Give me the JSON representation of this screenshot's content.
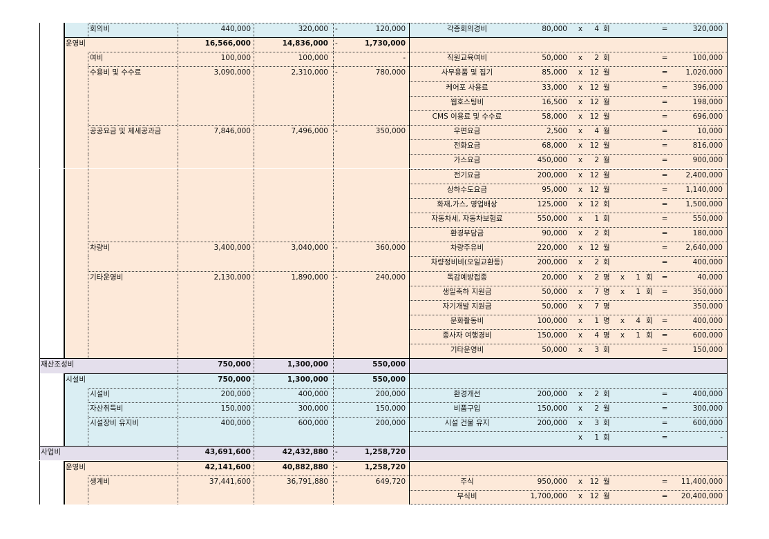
{
  "colors": {
    "blue": "#DAEEF3",
    "peach": "#FDE9D9",
    "lavender": "#E4DFEC"
  },
  "rows": [
    {
      "type": "l3",
      "group": "blue",
      "label": "회의비",
      "a": "440,000",
      "b": "320,000",
      "sign": "-",
      "c": "120,000",
      "d": {
        "item": "각종회의경비",
        "price": "80,000",
        "x1": "x",
        "n1": "4",
        "u1": "회",
        "eq": "=",
        "amt": "320,000"
      }
    },
    {
      "type": "l2",
      "group": "peach",
      "label": "운영비",
      "a": "16,566,000",
      "b": "14,836,000",
      "sign": "-",
      "c": "1,730,000"
    },
    {
      "type": "l3",
      "group": "peach",
      "label": "여비",
      "a": "100,000",
      "b": "100,000",
      "c": "-",
      "d": {
        "item": "직원교육여비",
        "price": "50,000",
        "x1": "x",
        "n1": "2",
        "u1": "회",
        "eq": "=",
        "amt": "100,000"
      }
    },
    {
      "type": "l3",
      "group": "peach",
      "label": "수용비 및 수수료",
      "a": "3,090,000",
      "b": "2,310,000",
      "sign": "-",
      "c": "780,000",
      "d": {
        "item": "사무용품 및 집기",
        "price": "85,000",
        "x1": "x",
        "n1": "12",
        "u1": "월",
        "eq": "=",
        "amt": "1,020,000"
      }
    },
    {
      "type": "cont",
      "group": "peach",
      "d": {
        "item": "케어포 사용료",
        "price": "33,000",
        "x1": "x",
        "n1": "12",
        "u1": "월",
        "eq": "=",
        "amt": "396,000"
      }
    },
    {
      "type": "cont",
      "group": "peach",
      "d": {
        "item": "웹호스팅비",
        "price": "16,500",
        "x1": "x",
        "n1": "12",
        "u1": "월",
        "eq": "=",
        "amt": "198,000"
      }
    },
    {
      "type": "cont",
      "group": "peach",
      "d": {
        "item": "CMS 이용료 및 수수료",
        "price": "58,000",
        "x1": "x",
        "n1": "12",
        "u1": "월",
        "eq": "=",
        "amt": "696,000"
      }
    },
    {
      "type": "l3",
      "group": "peach",
      "label": "공공요금 및 제세공과금",
      "a": "7,846,000",
      "b": "7,496,000",
      "sign": "-",
      "c": "350,000",
      "d": {
        "item": "우편요금",
        "price": "2,500",
        "x1": "x",
        "n1": "4",
        "u1": "월",
        "eq": "=",
        "amt": "10,000"
      }
    },
    {
      "type": "cont",
      "group": "peach",
      "d": {
        "item": "전화요금",
        "price": "68,000",
        "x1": "x",
        "n1": "12",
        "u1": "월",
        "eq": "=",
        "amt": "816,000"
      }
    },
    {
      "type": "cont",
      "group": "peach",
      "d": {
        "item": "가스요금",
        "price": "450,000",
        "x1": "x",
        "n1": "2",
        "u1": "월",
        "eq": "=",
        "amt": "900,000"
      }
    },
    {
      "type": "cont",
      "group": "peach",
      "d": {
        "item": "전기요금",
        "price": "200,000",
        "x1": "x",
        "n1": "12",
        "u1": "월",
        "eq": "=",
        "amt": "2,400,000"
      }
    },
    {
      "type": "cont",
      "group": "peach",
      "d": {
        "item": "상하수도요금",
        "price": "95,000",
        "x1": "x",
        "n1": "12",
        "u1": "월",
        "eq": "=",
        "amt": "1,140,000"
      }
    },
    {
      "type": "cont",
      "group": "peach",
      "d": {
        "item": "화재,가스, 영업배상",
        "price": "125,000",
        "x1": "x",
        "n1": "12",
        "u1": "회",
        "eq": "=",
        "amt": "1,500,000"
      }
    },
    {
      "type": "cont",
      "group": "peach",
      "d": {
        "item": "자동차세, 자동차보험료",
        "price": "550,000",
        "x1": "x",
        "n1": "1",
        "u1": "회",
        "eq": "=",
        "amt": "550,000"
      }
    },
    {
      "type": "cont",
      "group": "peach",
      "d": {
        "item": "환경부담금",
        "price": "90,000",
        "x1": "x",
        "n1": "2",
        "u1": "회",
        "eq": "=",
        "amt": "180,000"
      }
    },
    {
      "type": "l3",
      "group": "peach",
      "label": "차량비",
      "a": "3,400,000",
      "b": "3,040,000",
      "sign": "-",
      "c": "360,000",
      "d": {
        "item": "차량주유비",
        "price": "220,000",
        "x1": "x",
        "n1": "12",
        "u1": "월",
        "eq": "=",
        "amt": "2,640,000"
      }
    },
    {
      "type": "cont",
      "group": "peach",
      "d": {
        "item": "차량정비비(오일교환등)",
        "price": "200,000",
        "x1": "x",
        "n1": "2",
        "u1": "회",
        "eq": "=",
        "amt": "400,000"
      }
    },
    {
      "type": "l3",
      "group": "peach",
      "label": "기타운영비",
      "a": "2,130,000",
      "b": "1,890,000",
      "sign": "-",
      "c": "240,000",
      "d": {
        "item": "독감예방접종",
        "price": "20,000",
        "x1": "x",
        "n1": "2",
        "u1": "명",
        "x2": "x",
        "n2": "1",
        "u2": "회",
        "eq": "=",
        "amt": "40,000"
      }
    },
    {
      "type": "cont",
      "group": "peach",
      "d": {
        "item": "생일축하 지원금",
        "price": "50,000",
        "x1": "x",
        "n1": "7",
        "u1": "명",
        "x2": "x",
        "n2": "1",
        "u2": "회",
        "eq": "=",
        "amt": "350,000"
      }
    },
    {
      "type": "cont",
      "group": "peach",
      "d": {
        "item": "자기개발 지원금",
        "price": "50,000",
        "x1": "x",
        "n1": "7",
        "u1": "명",
        "amt": "350,000"
      }
    },
    {
      "type": "cont",
      "group": "peach",
      "d": {
        "item": "문화활동비",
        "price": "100,000",
        "x1": "x",
        "n1": "1",
        "u1": "명",
        "x2": "x",
        "n2": "4",
        "u2": "회",
        "eq": "=",
        "amt": "400,000"
      }
    },
    {
      "type": "cont",
      "group": "peach",
      "d": {
        "item": "종사자 여행경비",
        "price": "150,000",
        "x1": "x",
        "n1": "4",
        "u1": "명",
        "x2": "x",
        "n2": "1",
        "u2": "회",
        "eq": "=",
        "amt": "600,000"
      }
    },
    {
      "type": "cont",
      "group": "peach",
      "d": {
        "item": "기타운영비",
        "price": "50,000",
        "x1": "x",
        "n1": "3",
        "u1": "회",
        "eq": "=",
        "amt": "150,000"
      }
    },
    {
      "type": "l1",
      "group": "lavender",
      "label": "재산조성비",
      "a": "750,000",
      "b": "1,300,000",
      "c": "550,000"
    },
    {
      "type": "l2",
      "group": "blue",
      "label": "시설비",
      "a": "750,000",
      "b": "1,300,000",
      "c": "550,000"
    },
    {
      "type": "l3",
      "group": "blue",
      "label": "시설비",
      "a": "200,000",
      "b": "400,000",
      "c": "200,000",
      "d": {
        "item": "환경개선",
        "price": "200,000",
        "x1": "x",
        "n1": "2",
        "u1": "회",
        "eq": "=",
        "amt": "400,000"
      }
    },
    {
      "type": "l3",
      "group": "blue",
      "label": "자산취득비",
      "a": "150,000",
      "b": "300,000",
      "c": "150,000",
      "d": {
        "item": "비품구입",
        "price": "150,000",
        "x1": "x",
        "n1": "2",
        "u1": "월",
        "eq": "=",
        "amt": "300,000"
      }
    },
    {
      "type": "l3",
      "group": "blue",
      "label": "시설장비 유지비",
      "a": "400,000",
      "b": "600,000",
      "c": "200,000",
      "d": {
        "item": "시설 건물 유지",
        "price": "200,000",
        "x1": "x",
        "n1": "3",
        "u1": "회",
        "eq": "=",
        "amt": "600,000"
      }
    },
    {
      "type": "cont",
      "group": "blue",
      "d": {
        "x1": "x",
        "n1": "1",
        "u1": "회",
        "eq": "=",
        "amt": "-"
      }
    },
    {
      "type": "l1",
      "group": "lavender",
      "label": "사업비",
      "a": "43,691,600",
      "b": "42,432,880",
      "sign": "-",
      "c": "1,258,720"
    },
    {
      "type": "l2",
      "group": "peach",
      "label": "운영비",
      "a": "42,141,600",
      "b": "40,882,880",
      "sign": "-",
      "c": "1,258,720"
    },
    {
      "type": "l3",
      "group": "peach",
      "label": "생계비",
      "a": "37,441,600",
      "b": "36,791,880",
      "sign": "-",
      "c": "649,720",
      "d": {
        "item": "주식",
        "price": "950,000",
        "x1": "x",
        "n1": "12",
        "u1": "월",
        "eq": "=",
        "amt": "11,400,000"
      }
    },
    {
      "type": "cont",
      "group": "peach",
      "d": {
        "item": "부식비",
        "price": "1,700,000",
        "x1": "x",
        "n1": "12",
        "u1": "월",
        "eq": "=",
        "amt": "20,400,000"
      }
    }
  ]
}
